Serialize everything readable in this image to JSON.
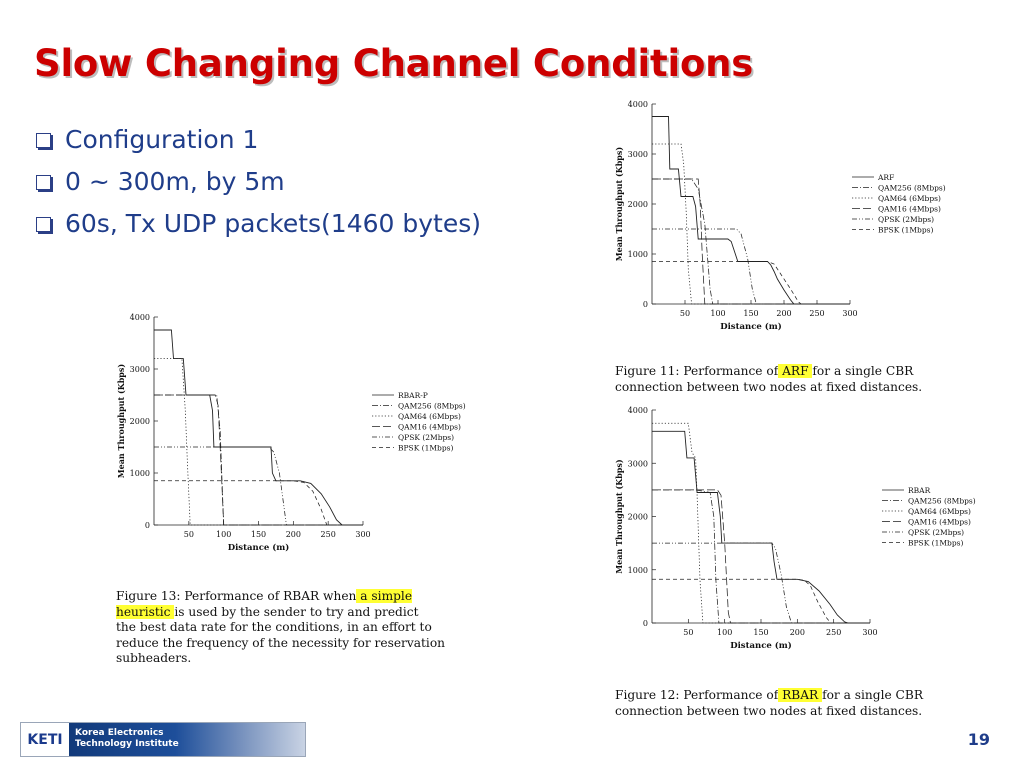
{
  "slide": {
    "title": "Slow Changing Channel Conditions",
    "bullets": [
      "Configuration 1",
      "0 ~ 300m, by 5m",
      "60s, Tx UDP packets(1460 bytes)"
    ],
    "page_number": "19",
    "logo": {
      "mark": "KETI",
      "line1": "Korea Electronics",
      "line2": "Technology Institute"
    },
    "captions": {
      "arf": {
        "line1_pre": "Figure 11:  Performance of",
        "line1_hl": " ARF ",
        "line1_post": "for a single CBR",
        "line2": "connection between two nodes at fixed distances."
      },
      "rbar": {
        "line1_pre": "Figure 12:  Performance of",
        "line1_hl": " RBAR ",
        "line1_post": "for a single CBR",
        "line2": "connection between two nodes at fixed distances."
      },
      "rbarp": {
        "line1_pre": "Figure 13:  Performance of RBAR when",
        "line1_hl": " a simple",
        "line2_hl": "heuristic ",
        "line2_post": "is used by the sender to try and predict",
        "line3": "the best data rate for the conditions, in an effort to",
        "line4": "reduce the frequency of the necessity for reservation",
        "line5": "subheaders."
      }
    }
  },
  "chart_data": [
    {
      "id": "arf",
      "type": "line",
      "xlabel": "Distance (m)",
      "ylabel": "Mean Throughput (Kbps)",
      "xlim": [
        0,
        300
      ],
      "ylim": [
        0,
        4000
      ],
      "xticks": [
        50,
        100,
        150,
        200,
        250,
        300
      ],
      "yticks": [
        0,
        1000,
        2000,
        3000,
        4000
      ],
      "legend_position": "right",
      "series": [
        {
          "name": "ARF",
          "dash": "solid",
          "points": [
            [
              0,
              3750
            ],
            [
              25,
              3750
            ],
            [
              27,
              2700
            ],
            [
              40,
              2700
            ],
            [
              44,
              2150
            ],
            [
              62,
              2150
            ],
            [
              66,
              1950
            ],
            [
              70,
              1300
            ],
            [
              115,
              1300
            ],
            [
              120,
              1250
            ],
            [
              125,
              1050
            ],
            [
              130,
              850
            ],
            [
              135,
              850
            ],
            [
              160,
              850
            ],
            [
              175,
              850
            ],
            [
              180,
              780
            ],
            [
              185,
              650
            ],
            [
              190,
              500
            ],
            [
              200,
              280
            ],
            [
              210,
              80
            ],
            [
              215,
              0
            ],
            [
              300,
              0
            ]
          ]
        },
        {
          "name": "QAM256 (8Mbps)",
          "dash": "dashdot",
          "points": [
            [
              0,
              2500
            ],
            [
              58,
              2500
            ],
            [
              60,
              2500
            ],
            [
              70,
              2300
            ],
            [
              80,
              1600
            ],
            [
              88,
              300
            ],
            [
              92,
              0
            ],
            [
              300,
              0
            ]
          ]
        },
        {
          "name": "QAM64 (6Mbps)",
          "dash": "dotted",
          "points": [
            [
              0,
              3200
            ],
            [
              44,
              3200
            ],
            [
              48,
              2800
            ],
            [
              52,
              1800
            ],
            [
              55,
              700
            ],
            [
              60,
              0
            ],
            [
              300,
              0
            ]
          ]
        },
        {
          "name": "QAM16 (4Mbps)",
          "dash": "longdash",
          "points": [
            [
              0,
              2500
            ],
            [
              70,
              2500
            ],
            [
              73,
              2000
            ],
            [
              76,
              1000
            ],
            [
              80,
              0
            ],
            [
              300,
              0
            ]
          ]
        },
        {
          "name": "QPSK (2Mbps)",
          "dash": "dashdotdot",
          "points": [
            [
              0,
              1500
            ],
            [
              128,
              1500
            ],
            [
              135,
              1400
            ],
            [
              145,
              900
            ],
            [
              152,
              300
            ],
            [
              158,
              0
            ],
            [
              300,
              0
            ]
          ]
        },
        {
          "name": "BPSK (1Mbps)",
          "dash": "dashed",
          "points": [
            [
              0,
              850
            ],
            [
              175,
              850
            ],
            [
              185,
              800
            ],
            [
              195,
              600
            ],
            [
              210,
              300
            ],
            [
              222,
              40
            ],
            [
              226,
              0
            ],
            [
              300,
              0
            ]
          ]
        }
      ]
    },
    {
      "id": "rbar",
      "type": "line",
      "xlabel": "Distance (m)",
      "ylabel": "Mean Throughput (Kbps)",
      "xlim": [
        0,
        300
      ],
      "ylim": [
        0,
        4000
      ],
      "xticks": [
        50,
        100,
        150,
        200,
        250,
        300
      ],
      "yticks": [
        0,
        1000,
        2000,
        3000,
        4000
      ],
      "legend_position": "right",
      "series": [
        {
          "name": "RBAR",
          "dash": "solid",
          "points": [
            [
              0,
              3600
            ],
            [
              45,
              3600
            ],
            [
              48,
              3100
            ],
            [
              58,
              3100
            ],
            [
              62,
              2450
            ],
            [
              85,
              2450
            ],
            [
              90,
              2450
            ],
            [
              94,
              2000
            ],
            [
              96,
              1500
            ],
            [
              138,
              1500
            ],
            [
              165,
              1500
            ],
            [
              168,
              1150
            ],
            [
              172,
              820
            ],
            [
              200,
              820
            ],
            [
              215,
              780
            ],
            [
              230,
              600
            ],
            [
              245,
              350
            ],
            [
              255,
              150
            ],
            [
              265,
              20
            ],
            [
              270,
              0
            ],
            [
              300,
              0
            ]
          ]
        },
        {
          "name": "QAM256 (8Mbps)",
          "dash": "dashdot",
          "points": [
            [
              0,
              2500
            ],
            [
              60,
              2500
            ],
            [
              80,
              2450
            ],
            [
              85,
              2000
            ],
            [
              88,
              800
            ],
            [
              92,
              0
            ],
            [
              300,
              0
            ]
          ]
        },
        {
          "name": "QAM64 (6Mbps)",
          "dash": "dotted",
          "points": [
            [
              0,
              3750
            ],
            [
              50,
              3750
            ],
            [
              55,
              3200
            ],
            [
              60,
              3100
            ],
            [
              62,
              2400
            ],
            [
              66,
              800
            ],
            [
              70,
              0
            ],
            [
              300,
              0
            ]
          ]
        },
        {
          "name": "QAM16 (4Mbps)",
          "dash": "longdash",
          "points": [
            [
              0,
              2500
            ],
            [
              90,
              2500
            ],
            [
              95,
              2400
            ],
            [
              100,
              1500
            ],
            [
              105,
              200
            ],
            [
              108,
              0
            ],
            [
              300,
              0
            ]
          ]
        },
        {
          "name": "QPSK (2Mbps)",
          "dash": "dashdotdot",
          "points": [
            [
              0,
              1500
            ],
            [
              165,
              1500
            ],
            [
              170,
              1400
            ],
            [
              178,
              900
            ],
            [
              185,
              300
            ],
            [
              192,
              0
            ],
            [
              300,
              0
            ]
          ]
        },
        {
          "name": "BPSK (1Mbps)",
          "dash": "dashed",
          "points": [
            [
              0,
              820
            ],
            [
              200,
              820
            ],
            [
              210,
              800
            ],
            [
              218,
              700
            ],
            [
              228,
              400
            ],
            [
              240,
              100
            ],
            [
              246,
              0
            ],
            [
              300,
              0
            ]
          ]
        }
      ]
    },
    {
      "id": "rbarp",
      "type": "line",
      "xlabel": "Distance (m)",
      "ylabel": "Mean Throughput (Kbps)",
      "xlim": [
        0,
        300
      ],
      "ylim": [
        0,
        4000
      ],
      "xticks": [
        50,
        100,
        150,
        200,
        250,
        300
      ],
      "yticks": [
        0,
        1000,
        2000,
        3000,
        4000
      ],
      "legend_position": "right",
      "series": [
        {
          "name": "RBAR-P",
          "dash": "solid",
          "points": [
            [
              0,
              3750
            ],
            [
              25,
              3750
            ],
            [
              28,
              3200
            ],
            [
              42,
              3200
            ],
            [
              46,
              2500
            ],
            [
              75,
              2500
            ],
            [
              80,
              2500
            ],
            [
              84,
              2200
            ],
            [
              86,
              1500
            ],
            [
              130,
              1500
            ],
            [
              168,
              1500
            ],
            [
              170,
              1000
            ],
            [
              175,
              850
            ],
            [
              210,
              850
            ],
            [
              225,
              800
            ],
            [
              240,
              600
            ],
            [
              252,
              350
            ],
            [
              262,
              100
            ],
            [
              270,
              0
            ],
            [
              300,
              0
            ]
          ]
        },
        {
          "name": "QAM256 (8Mbps)",
          "dash": "dashdot",
          "points": [
            [
              0,
              2500
            ],
            [
              80,
              2500
            ],
            [
              90,
              2500
            ],
            [
              95,
              1800
            ],
            [
              98,
              700
            ],
            [
              100,
              0
            ],
            [
              300,
              0
            ]
          ]
        },
        {
          "name": "QAM64 (6Mbps)",
          "dash": "dotted",
          "points": [
            [
              0,
              3200
            ],
            [
              40,
              3200
            ],
            [
              45,
              2200
            ],
            [
              48,
              1200
            ],
            [
              52,
              0
            ],
            [
              300,
              0
            ]
          ]
        },
        {
          "name": "QAM16 (4Mbps)",
          "dash": "longdash",
          "points": [
            [
              0,
              2500
            ],
            [
              88,
              2500
            ],
            [
              92,
              2300
            ],
            [
              96,
              1200
            ],
            [
              100,
              0
            ],
            [
              300,
              0
            ]
          ]
        },
        {
          "name": "QPSK (2Mbps)",
          "dash": "dashdotdot",
          "points": [
            [
              0,
              1500
            ],
            [
              165,
              1500
            ],
            [
              172,
              1400
            ],
            [
              180,
              1000
            ],
            [
              186,
              400
            ],
            [
              190,
              0
            ],
            [
              300,
              0
            ]
          ]
        },
        {
          "name": "BPSK (1Mbps)",
          "dash": "dashed",
          "points": [
            [
              0,
              850
            ],
            [
              200,
              850
            ],
            [
              215,
              820
            ],
            [
              228,
              650
            ],
            [
              240,
              300
            ],
            [
              248,
              0
            ],
            [
              300,
              0
            ]
          ]
        }
      ]
    }
  ]
}
